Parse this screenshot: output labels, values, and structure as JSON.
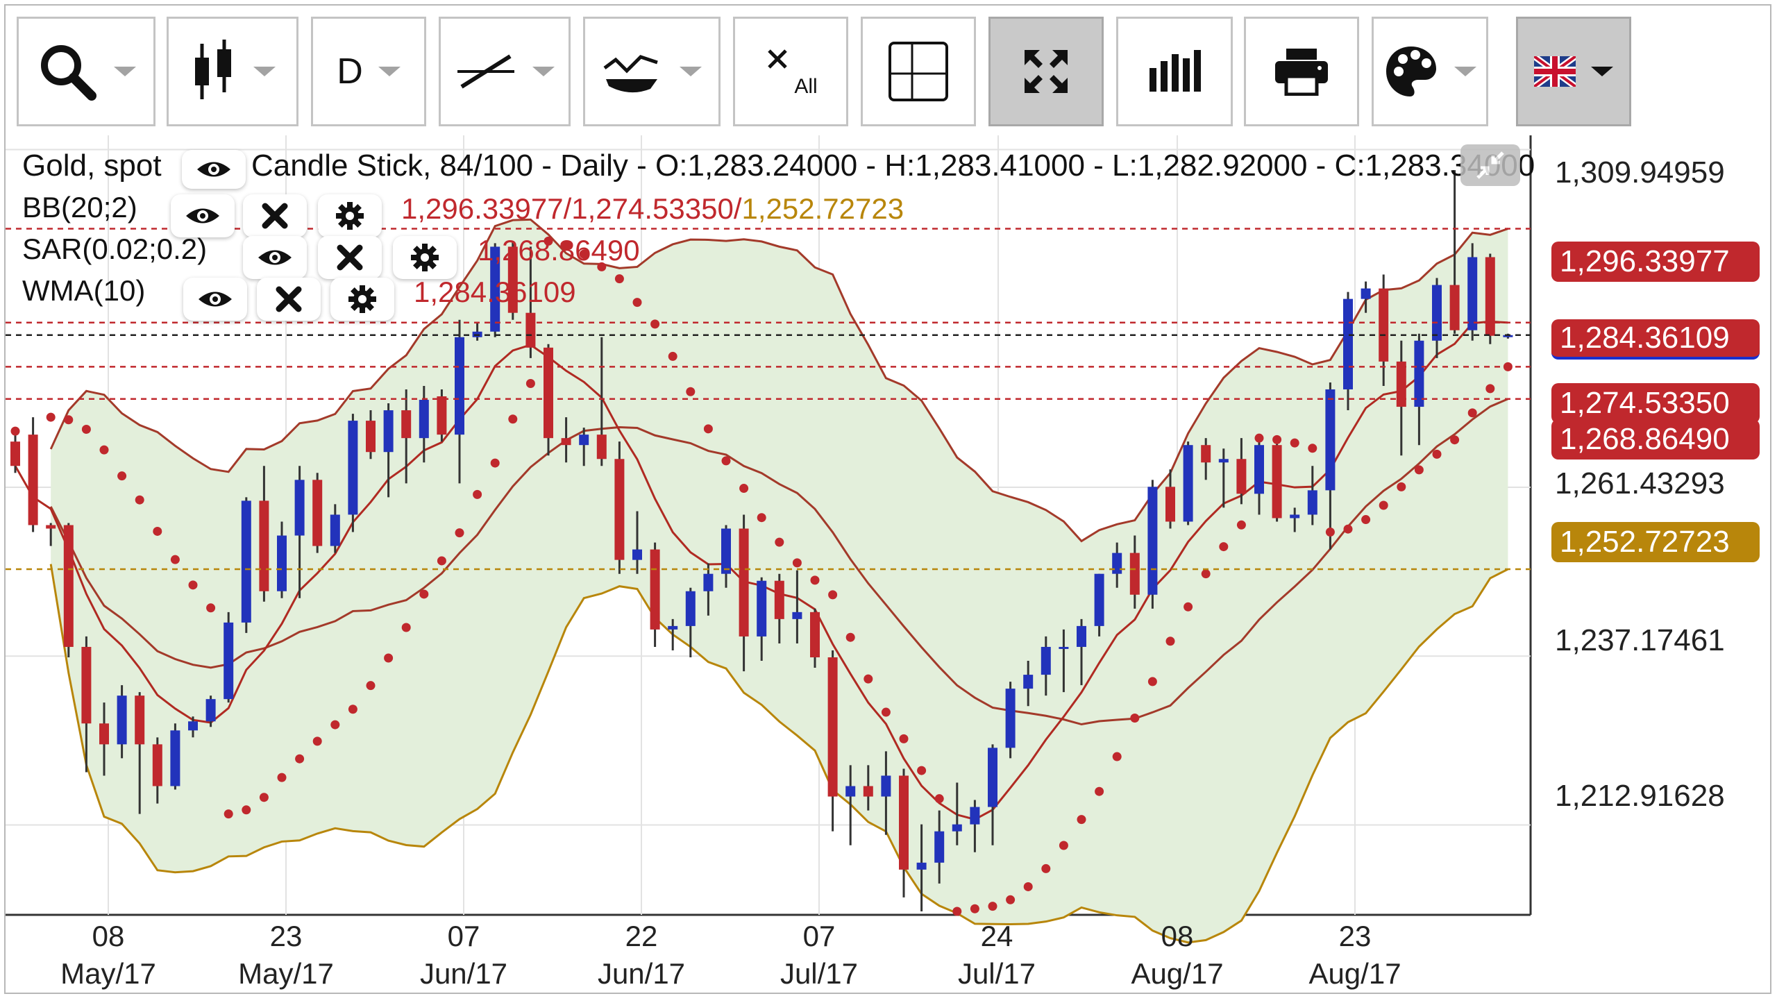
{
  "toolbar": {
    "buttons": [
      {
        "name": "search",
        "icon": "search-icon",
        "caret": true
      },
      {
        "name": "chart-type",
        "icon": "candlestick-icon",
        "caret": true
      },
      {
        "name": "period",
        "label": "D",
        "caret": true
      },
      {
        "name": "indicators",
        "icon": "trendline-icon",
        "caret": true
      },
      {
        "name": "drawing",
        "icon": "drawing-tools-icon",
        "caret": true
      },
      {
        "name": "remove-all",
        "icon": "remove-all-icon",
        "label": "All",
        "caret": false
      },
      {
        "name": "crosshair",
        "icon": "crosshair-icon",
        "caret": false
      },
      {
        "name": "fullscreen",
        "icon": "fullscreen-icon",
        "caret": false,
        "active": true
      },
      {
        "name": "volume",
        "icon": "bar-chart-icon",
        "caret": false
      },
      {
        "name": "print",
        "icon": "print-icon",
        "caret": false
      },
      {
        "name": "theme",
        "icon": "palette-icon",
        "caret": true
      },
      {
        "name": "language",
        "icon": "uk-flag-icon",
        "caret": true
      }
    ]
  },
  "header": {
    "instrument": "Gold, spot",
    "info": "Candle Stick, 84/100 - Daily - O:1,283.24000 - H:1,283.41000 - L:1,282.92000 - C:1,283.34000"
  },
  "indicators": [
    {
      "label": "BB(20;2)",
      "values": [
        "1,296.33977",
        "/",
        "1,274.53350",
        "/",
        "1,252.72723"
      ]
    },
    {
      "label": "SAR(0.02;0.2)",
      "values": [
        "1,268.86490"
      ]
    },
    {
      "label": "WMA(10)",
      "values": [
        "1,284.36109"
      ]
    }
  ],
  "price_tags": [
    {
      "text": "1,296.33977",
      "color": "#c0282d"
    },
    {
      "text": "1,284.36109",
      "color": "#c0282d"
    },
    {
      "text": "1,274.53350",
      "color": "#c0282d"
    },
    {
      "text": "1,268.86490",
      "color": "#c0282d"
    },
    {
      "text": "1,252.72723",
      "color": "#b8860b"
    }
  ],
  "y_axis_labels": [
    "1,309.94959",
    "1,261.43293",
    "1,237.17461",
    "1,212.91628"
  ],
  "x_axis_labels": [
    {
      "day": "08",
      "month": "May/17"
    },
    {
      "day": "23",
      "month": "May/17"
    },
    {
      "day": "07",
      "month": "Jun/17"
    },
    {
      "day": "22",
      "month": "Jun/17"
    },
    {
      "day": "07",
      "month": "Jul/17"
    },
    {
      "day": "24",
      "month": "Jul/17"
    },
    {
      "day": "08",
      "month": "Aug/17"
    },
    {
      "day": "23",
      "month": "Aug/17"
    }
  ],
  "colors": {
    "bull": "#2233bb",
    "bear": "#c0282d",
    "bb_fill": "#e3efdb",
    "bb_upper": "#a33a2a",
    "bb_lower": "#b8860b",
    "wma": "#b02a22",
    "sar": "#c0282d"
  },
  "chart_data": {
    "type": "candlestick",
    "ylim": [
      1200.0,
      1312.0
    ],
    "candles": [
      [
        1268.0,
        1269.5,
        1263.5,
        1264.5
      ],
      [
        1269.0,
        1271.5,
        1255.0,
        1256.0
      ],
      [
        1256.0,
        1256.3,
        1253.0,
        1255.5
      ],
      [
        1256.0,
        1256.3,
        1237.0,
        1238.5
      ],
      [
        1238.5,
        1240.0,
        1220.5,
        1227.5
      ],
      [
        1227.5,
        1230.5,
        1220.0,
        1224.5
      ],
      [
        1224.5,
        1233.0,
        1222.5,
        1231.5
      ],
      [
        1231.5,
        1232.0,
        1214.5,
        1224.5
      ],
      [
        1224.5,
        1225.5,
        1216.0,
        1218.5
      ],
      [
        1218.5,
        1227.5,
        1218.0,
        1226.5
      ],
      [
        1226.5,
        1228.5,
        1225.5,
        1227.8
      ],
      [
        1227.8,
        1231.5,
        1227.0,
        1231.0
      ],
      [
        1231.0,
        1243.5,
        1230.5,
        1242.0
      ],
      [
        1242.0,
        1260.0,
        1240.5,
        1259.5
      ],
      [
        1259.5,
        1264.5,
        1245.0,
        1246.5
      ],
      [
        1246.5,
        1256.5,
        1245.5,
        1254.5
      ],
      [
        1254.5,
        1264.5,
        1245.5,
        1262.5
      ],
      [
        1262.5,
        1263.5,
        1252.0,
        1253.0
      ],
      [
        1253.0,
        1259.0,
        1252.0,
        1257.5
      ],
      [
        1257.5,
        1272.0,
        1255.0,
        1271.0
      ],
      [
        1271.0,
        1272.5,
        1265.5,
        1266.5
      ],
      [
        1266.5,
        1273.5,
        1260.0,
        1272.5
      ],
      [
        1272.5,
        1275.5,
        1262.0,
        1268.5
      ],
      [
        1268.5,
        1276.0,
        1265.0,
        1274.0
      ],
      [
        1274.5,
        1275.5,
        1268.0,
        1269.0
      ],
      [
        1269.0,
        1285.5,
        1262.0,
        1283.0
      ],
      [
        1283.0,
        1285.0,
        1282.5,
        1283.8
      ],
      [
        1283.8,
        1296.5,
        1283.0,
        1296.0
      ],
      [
        1296.0,
        1296.8,
        1285.5,
        1286.5
      ],
      [
        1286.5,
        1296.0,
        1280.0,
        1281.5
      ],
      [
        1281.5,
        1282.0,
        1266.0,
        1268.5
      ],
      [
        1268.5,
        1271.5,
        1265.0,
        1267.5
      ],
      [
        1267.5,
        1270.0,
        1264.5,
        1269.0
      ],
      [
        1269.0,
        1283.0,
        1264.5,
        1265.5
      ],
      [
        1265.5,
        1268.0,
        1249.0,
        1251.0
      ],
      [
        1251.0,
        1258.0,
        1249.0,
        1252.5
      ],
      [
        1252.5,
        1253.5,
        1238.5,
        1241.0
      ],
      [
        1241.0,
        1242.5,
        1238.0,
        1241.5
      ],
      [
        1241.5,
        1247.0,
        1237.0,
        1246.5
      ],
      [
        1246.5,
        1250.5,
        1243.0,
        1249.0
      ],
      [
        1249.0,
        1256.0,
        1247.0,
        1255.5
      ],
      [
        1255.5,
        1257.5,
        1235.0,
        1240.0
      ],
      [
        1240.0,
        1248.5,
        1236.5,
        1248.0
      ],
      [
        1248.0,
        1249.0,
        1239.0,
        1242.5
      ],
      [
        1242.5,
        1249.5,
        1239.0,
        1243.5
      ],
      [
        1243.5,
        1244.0,
        1235.5,
        1237.0
      ],
      [
        1237.0,
        1238.0,
        1212.0,
        1217.0
      ],
      [
        1217.0,
        1221.5,
        1210.0,
        1218.5
      ],
      [
        1218.5,
        1221.5,
        1215.0,
        1217.0
      ],
      [
        1217.0,
        1223.5,
        1211.5,
        1220.0
      ],
      [
        1220.0,
        1221.0,
        1202.5,
        1206.5
      ],
      [
        1206.5,
        1213.0,
        1200.5,
        1207.5
      ],
      [
        1207.5,
        1215.0,
        1204.5,
        1212.0
      ],
      [
        1212.0,
        1219.0,
        1210.0,
        1213.0
      ],
      [
        1213.0,
        1216.5,
        1209.0,
        1215.5
      ],
      [
        1215.5,
        1224.5,
        1210.0,
        1224.0
      ],
      [
        1224.0,
        1233.5,
        1222.5,
        1232.5
      ],
      [
        1232.5,
        1236.5,
        1230.0,
        1234.5
      ],
      [
        1234.5,
        1240.0,
        1231.5,
        1238.5
      ],
      [
        1238.5,
        1241.0,
        1232.0,
        1238.5
      ],
      [
        1238.5,
        1242.5,
        1233.0,
        1241.5
      ],
      [
        1241.5,
        1249.0,
        1240.0,
        1249.0
      ],
      [
        1249.0,
        1253.5,
        1247.0,
        1252.0
      ],
      [
        1252.0,
        1254.5,
        1244.0,
        1246.0
      ],
      [
        1246.0,
        1262.5,
        1244.0,
        1261.5
      ],
      [
        1261.5,
        1264.0,
        1255.5,
        1256.5
      ],
      [
        1256.5,
        1268.0,
        1256.0,
        1267.5
      ],
      [
        1267.5,
        1268.5,
        1262.5,
        1265.0
      ],
      [
        1265.0,
        1267.0,
        1258.5,
        1265.5
      ],
      [
        1265.5,
        1268.5,
        1259.0,
        1260.5
      ],
      [
        1260.5,
        1268.0,
        1257.5,
        1267.5
      ],
      [
        1267.5,
        1268.0,
        1256.5,
        1257.0
      ],
      [
        1257.0,
        1258.5,
        1255.0,
        1257.5
      ],
      [
        1257.5,
        1264.5,
        1256.0,
        1261.0
      ],
      [
        1261.0,
        1276.5,
        1252.5,
        1275.5
      ],
      [
        1275.5,
        1289.5,
        1272.5,
        1288.5
      ],
      [
        1288.5,
        1291.0,
        1286.5,
        1290.0
      ],
      [
        1290.0,
        1292.0,
        1276.0,
        1279.5
      ],
      [
        1279.5,
        1282.5,
        1266.0,
        1273.0
      ],
      [
        1273.0,
        1283.5,
        1267.5,
        1282.5
      ],
      [
        1282.5,
        1291.5,
        1280.0,
        1290.5
      ],
      [
        1290.5,
        1307.0,
        1283.5,
        1284.0
      ],
      [
        1284.0,
        1296.5,
        1282.5,
        1294.5
      ],
      [
        1294.5,
        1295.0,
        1282.0,
        1283.2
      ],
      [
        1283.2,
        1283.5,
        1282.8,
        1283.3
      ]
    ]
  }
}
